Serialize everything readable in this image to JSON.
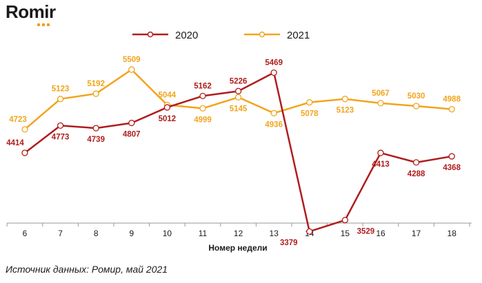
{
  "logo": {
    "text": "Romir"
  },
  "source": "Источник данных: Ромир, май 2021",
  "colors": {
    "s2020": "#b01c1c",
    "s2021": "#f2a41c",
    "axis": "#999999",
    "text": "#1a1a1a"
  },
  "chart_data": {
    "type": "line",
    "xlabel": "Номер недели",
    "ylabel": "",
    "x": [
      6,
      7,
      8,
      9,
      10,
      11,
      12,
      13,
      14,
      15,
      16,
      17,
      18
    ],
    "ylim": [
      3200,
      5700
    ],
    "grid": false,
    "legend_position": "top-center",
    "series": [
      {
        "name": "2020",
        "color": "#b01c1c",
        "values": [
          4414,
          4773,
          4739,
          4807,
          5012,
          5162,
          5226,
          5469,
          3379,
          3529,
          4413,
          4288,
          4368
        ]
      },
      {
        "name": "2021",
        "color": "#f2a41c",
        "values": [
          4723,
          5123,
          5192,
          5509,
          5044,
          4999,
          5145,
          4936,
          5078,
          5123,
          5067,
          5030,
          4988
        ]
      }
    ]
  }
}
